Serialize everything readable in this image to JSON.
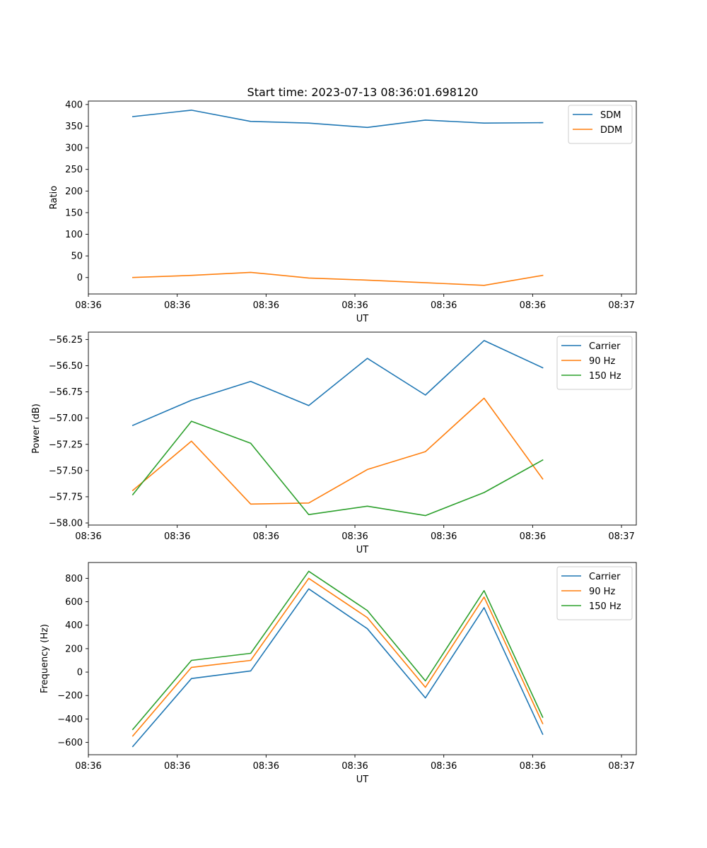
{
  "title": "Start time: 2023-07-13 08:36:01.698120",
  "chart_data": [
    {
      "type": "line",
      "xlabel": "UT",
      "ylabel": "Ratio",
      "xlim": [
        0,
        9.25
      ],
      "x_ticks": [
        {
          "x": 0.0,
          "label": "08:36"
        },
        {
          "x": 1.5,
          "label": "08:36"
        },
        {
          "x": 3.0,
          "label": "08:36"
        },
        {
          "x": 4.5,
          "label": "08:36"
        },
        {
          "x": 6.0,
          "label": "08:36"
        },
        {
          "x": 7.5,
          "label": "08:36"
        },
        {
          "x": 9.0,
          "label": "08:37"
        }
      ],
      "ylim": [
        -38,
        408
      ],
      "y_ticks": [
        0,
        50,
        100,
        150,
        200,
        250,
        300,
        350,
        400
      ],
      "y_tick_labels": [
        "0",
        "50",
        "100",
        "150",
        "200",
        "250",
        "300",
        "350",
        "400"
      ],
      "legend_position": "top-right",
      "series": [
        {
          "name": "SDM",
          "color": "#1f77b4",
          "x": [
            0.75,
            1.74,
            2.74,
            3.72,
            4.71,
            5.69,
            6.68,
            7.67
          ],
          "values": [
            372,
            387,
            361,
            357,
            347,
            364,
            357,
            358
          ]
        },
        {
          "name": "DDM",
          "color": "#ff7f0e",
          "x": [
            0.75,
            1.74,
            2.74,
            3.72,
            4.71,
            5.69,
            6.68,
            7.67
          ],
          "values": [
            0,
            5,
            12,
            -1,
            -6,
            -12,
            -18,
            5
          ]
        }
      ]
    },
    {
      "type": "line",
      "xlabel": "UT",
      "ylabel": "Power (dB)",
      "xlim": [
        0,
        9.25
      ],
      "x_ticks": [
        {
          "x": 0.0,
          "label": "08:36"
        },
        {
          "x": 1.5,
          "label": "08:36"
        },
        {
          "x": 3.0,
          "label": "08:36"
        },
        {
          "x": 4.5,
          "label": "08:36"
        },
        {
          "x": 6.0,
          "label": "08:36"
        },
        {
          "x": 7.5,
          "label": "08:36"
        },
        {
          "x": 9.0,
          "label": "08:37"
        }
      ],
      "ylim": [
        -58.02,
        -56.18
      ],
      "y_ticks": [
        -58.0,
        -57.75,
        -57.5,
        -57.25,
        -57.0,
        -56.75,
        -56.5,
        -56.25
      ],
      "y_tick_labels": [
        "−58.00",
        "−57.75",
        "−57.50",
        "−57.25",
        "−57.00",
        "−56.75",
        "−56.50",
        "−56.25"
      ],
      "legend_position": "top-right",
      "series": [
        {
          "name": "Carrier",
          "color": "#1f77b4",
          "x": [
            0.75,
            1.74,
            2.74,
            3.72,
            4.71,
            5.69,
            6.68,
            7.67
          ],
          "values": [
            -57.07,
            -56.83,
            -56.65,
            -56.88,
            -56.43,
            -56.78,
            -56.26,
            -56.52
          ]
        },
        {
          "name": "90 Hz",
          "color": "#ff7f0e",
          "x": [
            0.75,
            1.74,
            2.74,
            3.72,
            4.71,
            5.69,
            6.68,
            7.67
          ],
          "values": [
            -57.69,
            -57.22,
            -57.82,
            -57.81,
            -57.49,
            -57.32,
            -56.81,
            -57.58
          ]
        },
        {
          "name": "150 Hz",
          "color": "#2ca02c",
          "x": [
            0.75,
            1.74,
            2.74,
            3.72,
            4.71,
            5.69,
            6.68,
            7.67
          ],
          "values": [
            -57.73,
            -57.03,
            -57.24,
            -57.92,
            -57.84,
            -57.93,
            -57.71,
            -57.4
          ]
        }
      ]
    },
    {
      "type": "line",
      "xlabel": "UT",
      "ylabel": "Frequency (Hz)",
      "xlim": [
        0,
        9.25
      ],
      "x_ticks": [
        {
          "x": 0.0,
          "label": "08:36"
        },
        {
          "x": 1.5,
          "label": "08:36"
        },
        {
          "x": 3.0,
          "label": "08:36"
        },
        {
          "x": 4.5,
          "label": "08:36"
        },
        {
          "x": 6.0,
          "label": "08:36"
        },
        {
          "x": 7.5,
          "label": "08:36"
        },
        {
          "x": 9.0,
          "label": "08:37"
        }
      ],
      "ylim": [
        -705,
        935
      ],
      "y_ticks": [
        -600,
        -400,
        -200,
        0,
        200,
        400,
        600,
        800
      ],
      "y_tick_labels": [
        "−600",
        "−400",
        "−200",
        "0",
        "200",
        "400",
        "600",
        "800"
      ],
      "legend_position": "top-right",
      "series": [
        {
          "name": "Carrier",
          "color": "#1f77b4",
          "x": [
            0.75,
            1.74,
            2.74,
            3.72,
            4.71,
            5.69,
            6.68,
            7.67
          ],
          "values": [
            -635,
            -55,
            10,
            710,
            370,
            -220,
            550,
            -530
          ]
        },
        {
          "name": "90 Hz",
          "color": "#ff7f0e",
          "x": [
            0.75,
            1.74,
            2.74,
            3.72,
            4.71,
            5.69,
            6.68,
            7.67
          ],
          "values": [
            -545,
            40,
            100,
            800,
            465,
            -130,
            640,
            -440
          ]
        },
        {
          "name": "150 Hz",
          "color": "#2ca02c",
          "x": [
            0.75,
            1.74,
            2.74,
            3.72,
            4.71,
            5.69,
            6.68,
            7.67
          ],
          "values": [
            -490,
            100,
            160,
            860,
            525,
            -75,
            695,
            -385
          ]
        }
      ]
    }
  ]
}
